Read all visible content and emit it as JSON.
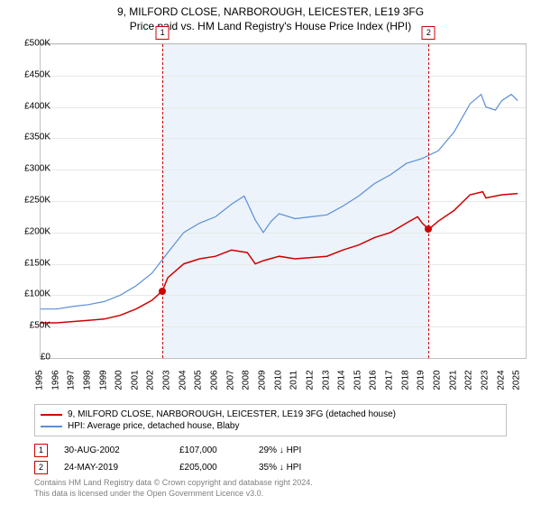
{
  "title": "9, MILFORD CLOSE, NARBOROUGH, LEICESTER, LE19 3FG",
  "subtitle": "Price paid vs. HM Land Registry's House Price Index (HPI)",
  "chart": {
    "type": "line",
    "ylim": [
      0,
      500000
    ],
    "ytick_step": 50000,
    "y_ticks": [
      "£0",
      "£50K",
      "£100K",
      "£150K",
      "£200K",
      "£250K",
      "£300K",
      "£350K",
      "£400K",
      "£450K",
      "£500K"
    ],
    "x_min": 1995,
    "x_max": 2025.5,
    "x_ticks": [
      "1995",
      "1996",
      "1997",
      "1998",
      "1999",
      "2000",
      "2001",
      "2002",
      "2003",
      "2004",
      "2005",
      "2006",
      "2007",
      "2008",
      "2009",
      "2010",
      "2011",
      "2012",
      "2013",
      "2014",
      "2015",
      "2016",
      "2017",
      "2018",
      "2019",
      "2020",
      "2021",
      "2022",
      "2023",
      "2024",
      "2025"
    ],
    "shaded_region": {
      "start": 2002.66,
      "end": 2019.4
    },
    "background_color": "#ffffff",
    "shaded_color": "#ecf3fb",
    "grid_color": "#e8e8e8",
    "axis_color": "#c0c0c0",
    "label_fontsize": 10,
    "title_fontsize": 12,
    "series": [
      {
        "name": "price_paid",
        "label": "9, MILFORD CLOSE, NARBOROUGH, LEICESTER, LE19 3FG (detached house)",
        "color": "#d00000",
        "line_width": 1.5,
        "data": [
          [
            1995,
            56000
          ],
          [
            1996,
            56000
          ],
          [
            1997,
            58000
          ],
          [
            1998,
            60000
          ],
          [
            1999,
            62000
          ],
          [
            2000,
            68000
          ],
          [
            2001,
            78000
          ],
          [
            2002,
            92000
          ],
          [
            2002.66,
            107000
          ],
          [
            2003,
            128000
          ],
          [
            2004,
            150000
          ],
          [
            2005,
            158000
          ],
          [
            2006,
            162000
          ],
          [
            2007,
            172000
          ],
          [
            2008,
            168000
          ],
          [
            2008.5,
            150000
          ],
          [
            2009,
            155000
          ],
          [
            2010,
            162000
          ],
          [
            2011,
            158000
          ],
          [
            2012,
            160000
          ],
          [
            2013,
            162000
          ],
          [
            2014,
            172000
          ],
          [
            2015,
            180000
          ],
          [
            2016,
            192000
          ],
          [
            2017,
            200000
          ],
          [
            2018,
            215000
          ],
          [
            2018.7,
            225000
          ],
          [
            2019,
            215000
          ],
          [
            2019.4,
            205000
          ],
          [
            2020,
            218000
          ],
          [
            2021,
            235000
          ],
          [
            2022,
            260000
          ],
          [
            2022.8,
            265000
          ],
          [
            2023,
            255000
          ],
          [
            2024,
            260000
          ],
          [
            2025,
            262000
          ]
        ]
      },
      {
        "name": "hpi",
        "label": "HPI: Average price, detached house, Blaby",
        "color": "#5b8fd6",
        "line_width": 1.2,
        "data": [
          [
            1995,
            78000
          ],
          [
            1996,
            78000
          ],
          [
            1997,
            82000
          ],
          [
            1998,
            85000
          ],
          [
            1999,
            90000
          ],
          [
            2000,
            100000
          ],
          [
            2001,
            115000
          ],
          [
            2002,
            135000
          ],
          [
            2003,
            168000
          ],
          [
            2004,
            200000
          ],
          [
            2005,
            215000
          ],
          [
            2006,
            225000
          ],
          [
            2007,
            245000
          ],
          [
            2007.8,
            258000
          ],
          [
            2008.5,
            220000
          ],
          [
            2009,
            200000
          ],
          [
            2009.5,
            218000
          ],
          [
            2010,
            230000
          ],
          [
            2011,
            222000
          ],
          [
            2012,
            225000
          ],
          [
            2013,
            228000
          ],
          [
            2014,
            242000
          ],
          [
            2015,
            258000
          ],
          [
            2016,
            278000
          ],
          [
            2017,
            292000
          ],
          [
            2018,
            310000
          ],
          [
            2019,
            318000
          ],
          [
            2020,
            330000
          ],
          [
            2021,
            360000
          ],
          [
            2022,
            405000
          ],
          [
            2022.7,
            420000
          ],
          [
            2023,
            400000
          ],
          [
            2023.6,
            395000
          ],
          [
            2024,
            410000
          ],
          [
            2024.6,
            420000
          ],
          [
            2025,
            410000
          ]
        ]
      }
    ],
    "markers": [
      {
        "n": "1",
        "x": 2002.66,
        "y": 107000
      },
      {
        "n": "2",
        "x": 2019.4,
        "y": 205000
      }
    ]
  },
  "legend": {
    "border_color": "#c0c0c0",
    "items": [
      {
        "color": "#d00000",
        "label_path": "chart.series.0.label"
      },
      {
        "color": "#5b8fd6",
        "label_path": "chart.series.1.label"
      }
    ]
  },
  "transactions": [
    {
      "n": "1",
      "date": "30-AUG-2002",
      "price": "£107,000",
      "pct": "29% ↓ HPI"
    },
    {
      "n": "2",
      "date": "24-MAY-2019",
      "price": "£205,000",
      "pct": "35% ↓ HPI"
    }
  ],
  "copyright": {
    "line1": "Contains HM Land Registry data © Crown copyright and database right 2024.",
    "line2": "This data is licensed under the Open Government Licence v3.0."
  }
}
